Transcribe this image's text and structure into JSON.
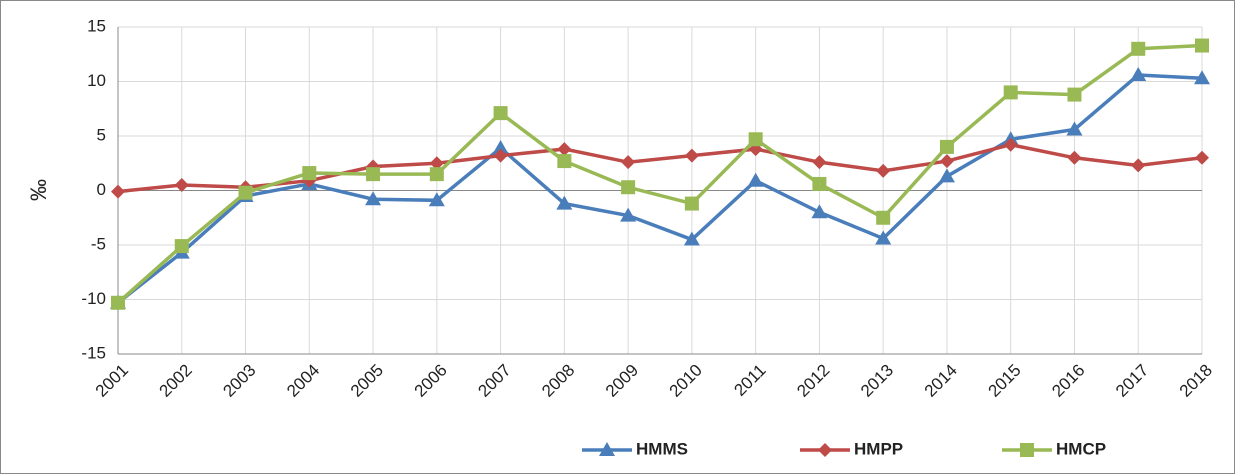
{
  "chart_data": {
    "type": "line",
    "ylabel": "‰",
    "categories": [
      "2001",
      "2002",
      "2003",
      "2004",
      "2005",
      "2006",
      "2007",
      "2008",
      "2009",
      "2010",
      "2011",
      "2012",
      "2013",
      "2014",
      "2015",
      "2016",
      "2017",
      "2018"
    ],
    "series": [
      {
        "name": "HMMS",
        "color": "#4a7ebb",
        "marker": "triangle",
        "values": [
          -10.3,
          -5.7,
          -0.5,
          0.6,
          -0.8,
          -0.9,
          3.9,
          -1.2,
          -2.3,
          -4.5,
          0.9,
          -2.0,
          -4.4,
          1.3,
          4.7,
          5.6,
          10.6,
          10.3
        ]
      },
      {
        "name": "HMPP",
        "color": "#be4b48",
        "marker": "diamond",
        "values": [
          -0.1,
          0.5,
          0.3,
          0.9,
          2.2,
          2.5,
          3.2,
          3.8,
          2.6,
          3.2,
          3.8,
          2.6,
          1.8,
          2.7,
          4.2,
          3.0,
          2.3,
          3.0
        ]
      },
      {
        "name": "HMCP",
        "color": "#98b954",
        "marker": "square",
        "values": [
          -10.3,
          -5.1,
          -0.2,
          1.6,
          1.5,
          1.5,
          7.1,
          2.7,
          0.3,
          -1.2,
          4.7,
          0.6,
          -2.5,
          4.0,
          9.0,
          8.8,
          13.0,
          13.3
        ]
      }
    ],
    "ylim": [
      -15,
      15
    ],
    "yticks": [
      -15,
      -10,
      -5,
      0,
      5,
      10,
      15
    ],
    "grid": true,
    "legend": "bottom"
  }
}
